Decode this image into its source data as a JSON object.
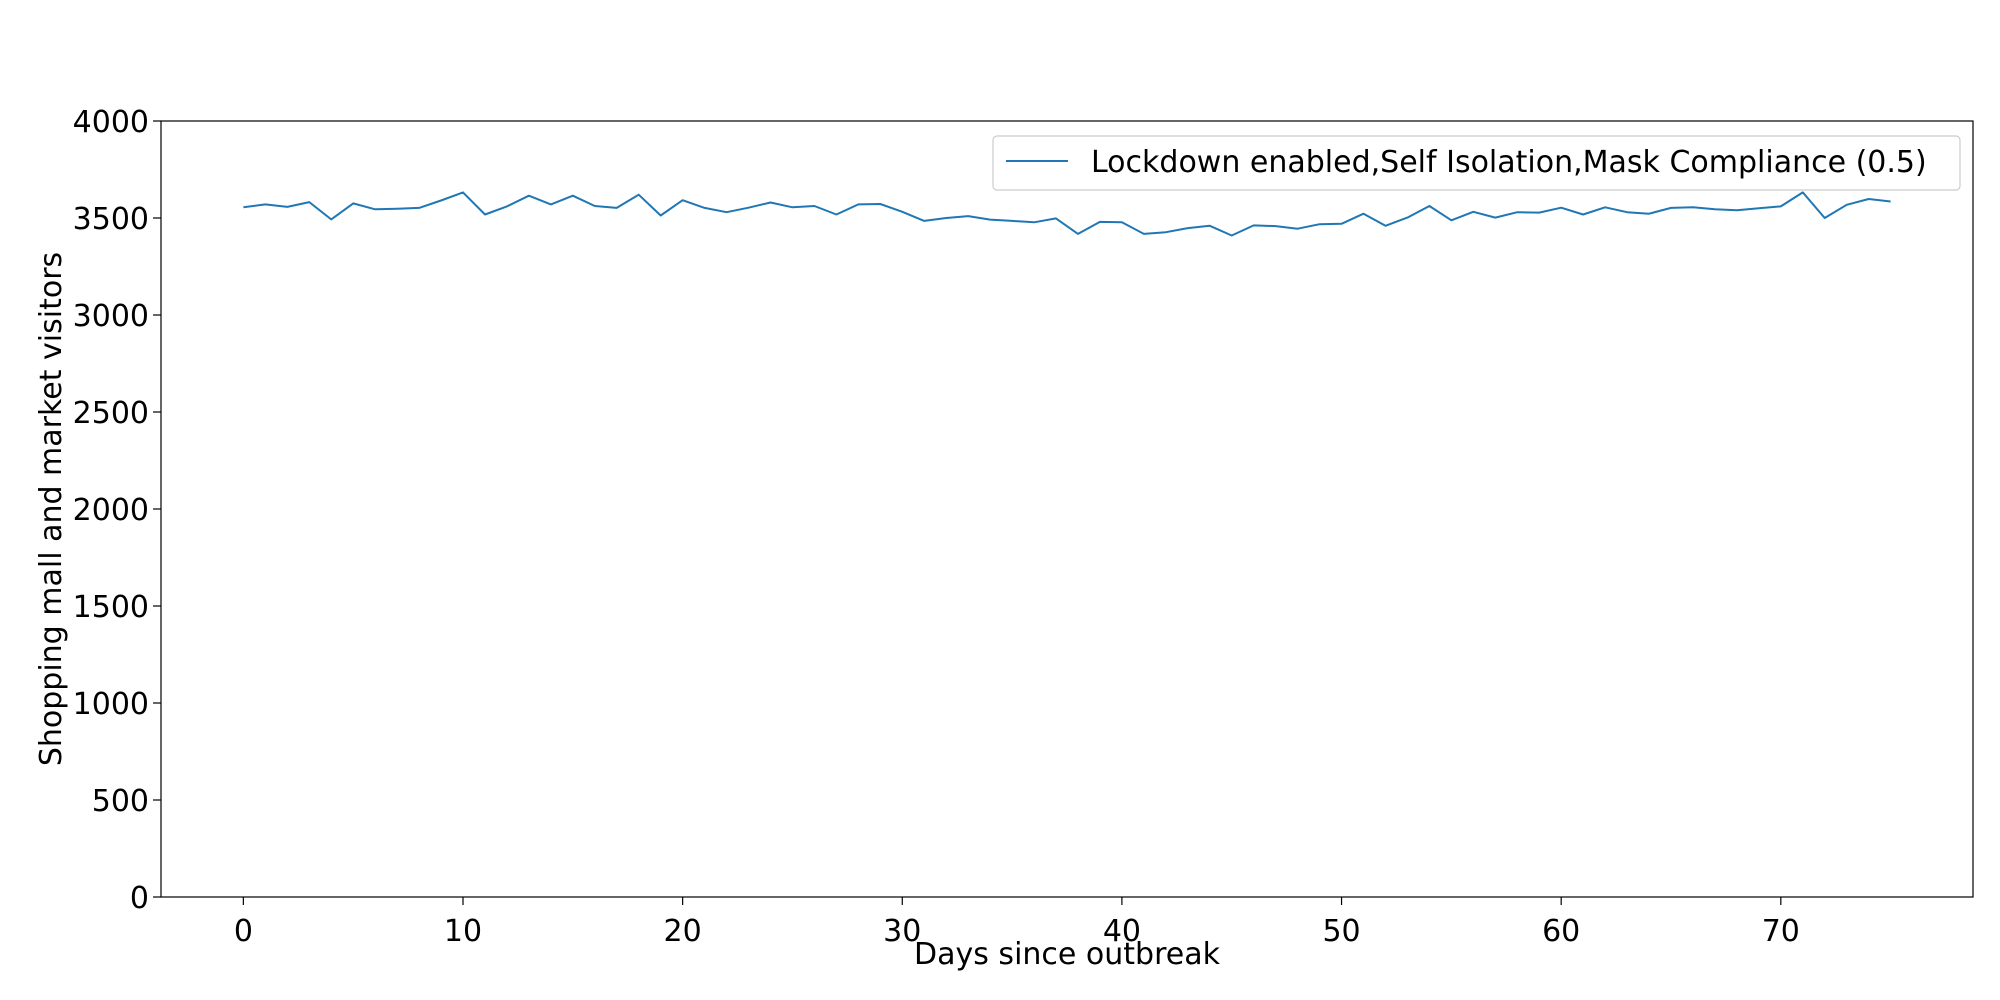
{
  "chart_data": {
    "type": "line",
    "title": "",
    "xlabel": "Days since outbreak",
    "ylabel": "Shopping mall and market visitors",
    "xlim": [
      -3.75,
      78.75
    ],
    "ylim": [
      0,
      4000
    ],
    "x_ticks": [
      0,
      10,
      20,
      30,
      40,
      50,
      60,
      70
    ],
    "y_ticks": [
      0,
      500,
      1000,
      1500,
      2000,
      2500,
      3000,
      3500,
      4000
    ],
    "grid": false,
    "legend_position": "top-right",
    "series": [
      {
        "name": "Lockdown enabled,Self Isolation,Mask Compliance (0.5)",
        "color": "#1f77b4",
        "x": [
          0,
          1,
          2,
          3,
          4,
          5,
          6,
          7,
          8,
          9,
          10,
          11,
          12,
          13,
          14,
          15,
          16,
          17,
          18,
          19,
          20,
          21,
          22,
          23,
          24,
          25,
          26,
          27,
          28,
          29,
          30,
          31,
          32,
          33,
          34,
          35,
          36,
          37,
          38,
          39,
          40,
          41,
          42,
          43,
          44,
          45,
          46,
          47,
          48,
          49,
          50,
          51,
          52,
          53,
          54,
          55,
          56,
          57,
          58,
          59,
          60,
          61,
          62,
          63,
          64,
          65,
          66,
          67,
          68,
          69,
          70,
          71,
          72,
          73,
          74,
          75
        ],
        "values": [
          3555,
          3570,
          3557,
          3582,
          3493,
          3575,
          3545,
          3548,
          3552,
          3590,
          3632,
          3518,
          3560,
          3615,
          3570,
          3615,
          3562,
          3552,
          3620,
          3513,
          3592,
          3552,
          3530,
          3553,
          3580,
          3555,
          3562,
          3518,
          3570,
          3572,
          3532,
          3485,
          3500,
          3510,
          3492,
          3485,
          3478,
          3498,
          3418,
          3480,
          3478,
          3418,
          3427,
          3448,
          3460,
          3410,
          3462,
          3458,
          3445,
          3468,
          3470,
          3522,
          3460,
          3502,
          3562,
          3488,
          3532,
          3502,
          3530,
          3528,
          3553,
          3518,
          3555,
          3530,
          3522,
          3552,
          3555,
          3545,
          3540,
          3550,
          3560,
          3632,
          3500,
          3568,
          3598,
          3585
        ]
      }
    ]
  }
}
